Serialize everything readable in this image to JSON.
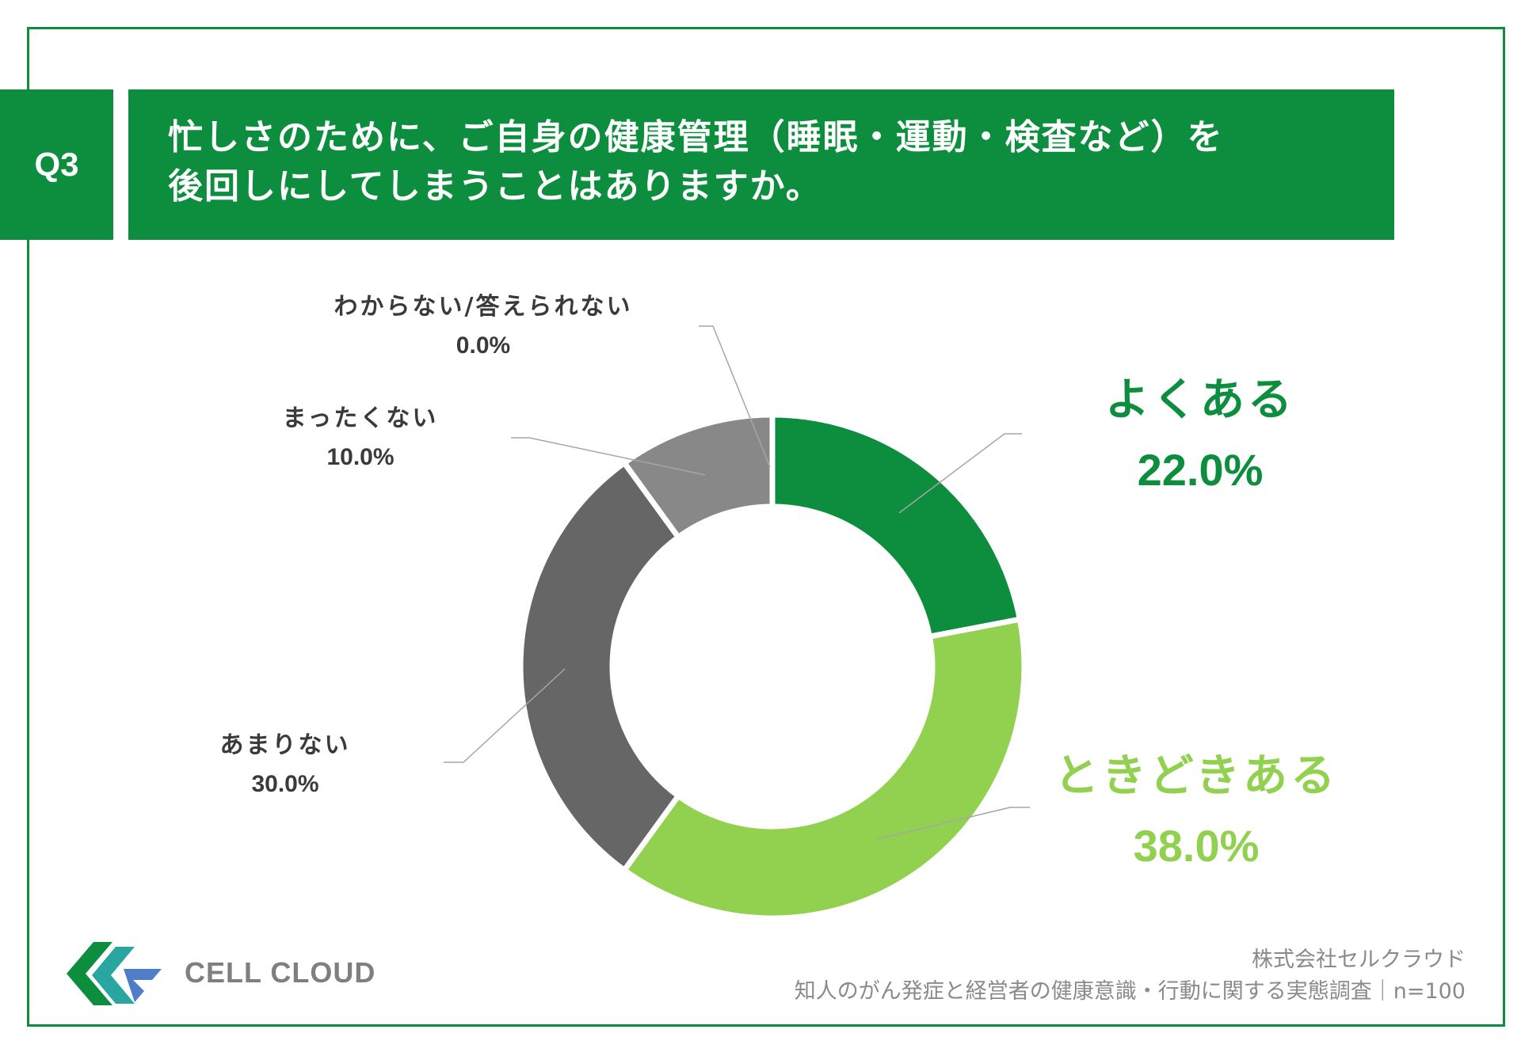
{
  "header": {
    "q_label": "Q3",
    "title_line1": "忙しさのために、ご自身の健康管理（睡眠・運動・検査など）を",
    "title_line2": "後回しにしてしまうことはありますか。"
  },
  "colors": {
    "brand": "#0d8e3e",
    "light_green": "#92d050",
    "dark_gray": "#666666",
    "gray": "#888888"
  },
  "chart_data": {
    "type": "pie",
    "title": "忙しさのために、ご自身の健康管理（睡眠・運動・検査など）を後回しにしてしまうことはありますか。",
    "donut": true,
    "slices": [
      {
        "label": "よくある",
        "value": 22.0,
        "display": "22.0%",
        "color": "#0d8e3e"
      },
      {
        "label": "ときどきある",
        "value": 38.0,
        "display": "38.0%",
        "color": "#92d050"
      },
      {
        "label": "あまりない",
        "value": 30.0,
        "display": "30.0%",
        "color": "#666666"
      },
      {
        "label": "まったくない",
        "value": 10.0,
        "display": "10.0%",
        "color": "#888888"
      },
      {
        "label": "わからない/答えられない",
        "value": 0.0,
        "display": "0.0%",
        "color": "#aaaaaa"
      }
    ]
  },
  "logo": {
    "text": "CELL CLOUD"
  },
  "footer": {
    "company": "株式会社セルクラウド",
    "survey": "知人のがん発症と経営者の健康意識・行動に関する実態調査｜n=100"
  }
}
